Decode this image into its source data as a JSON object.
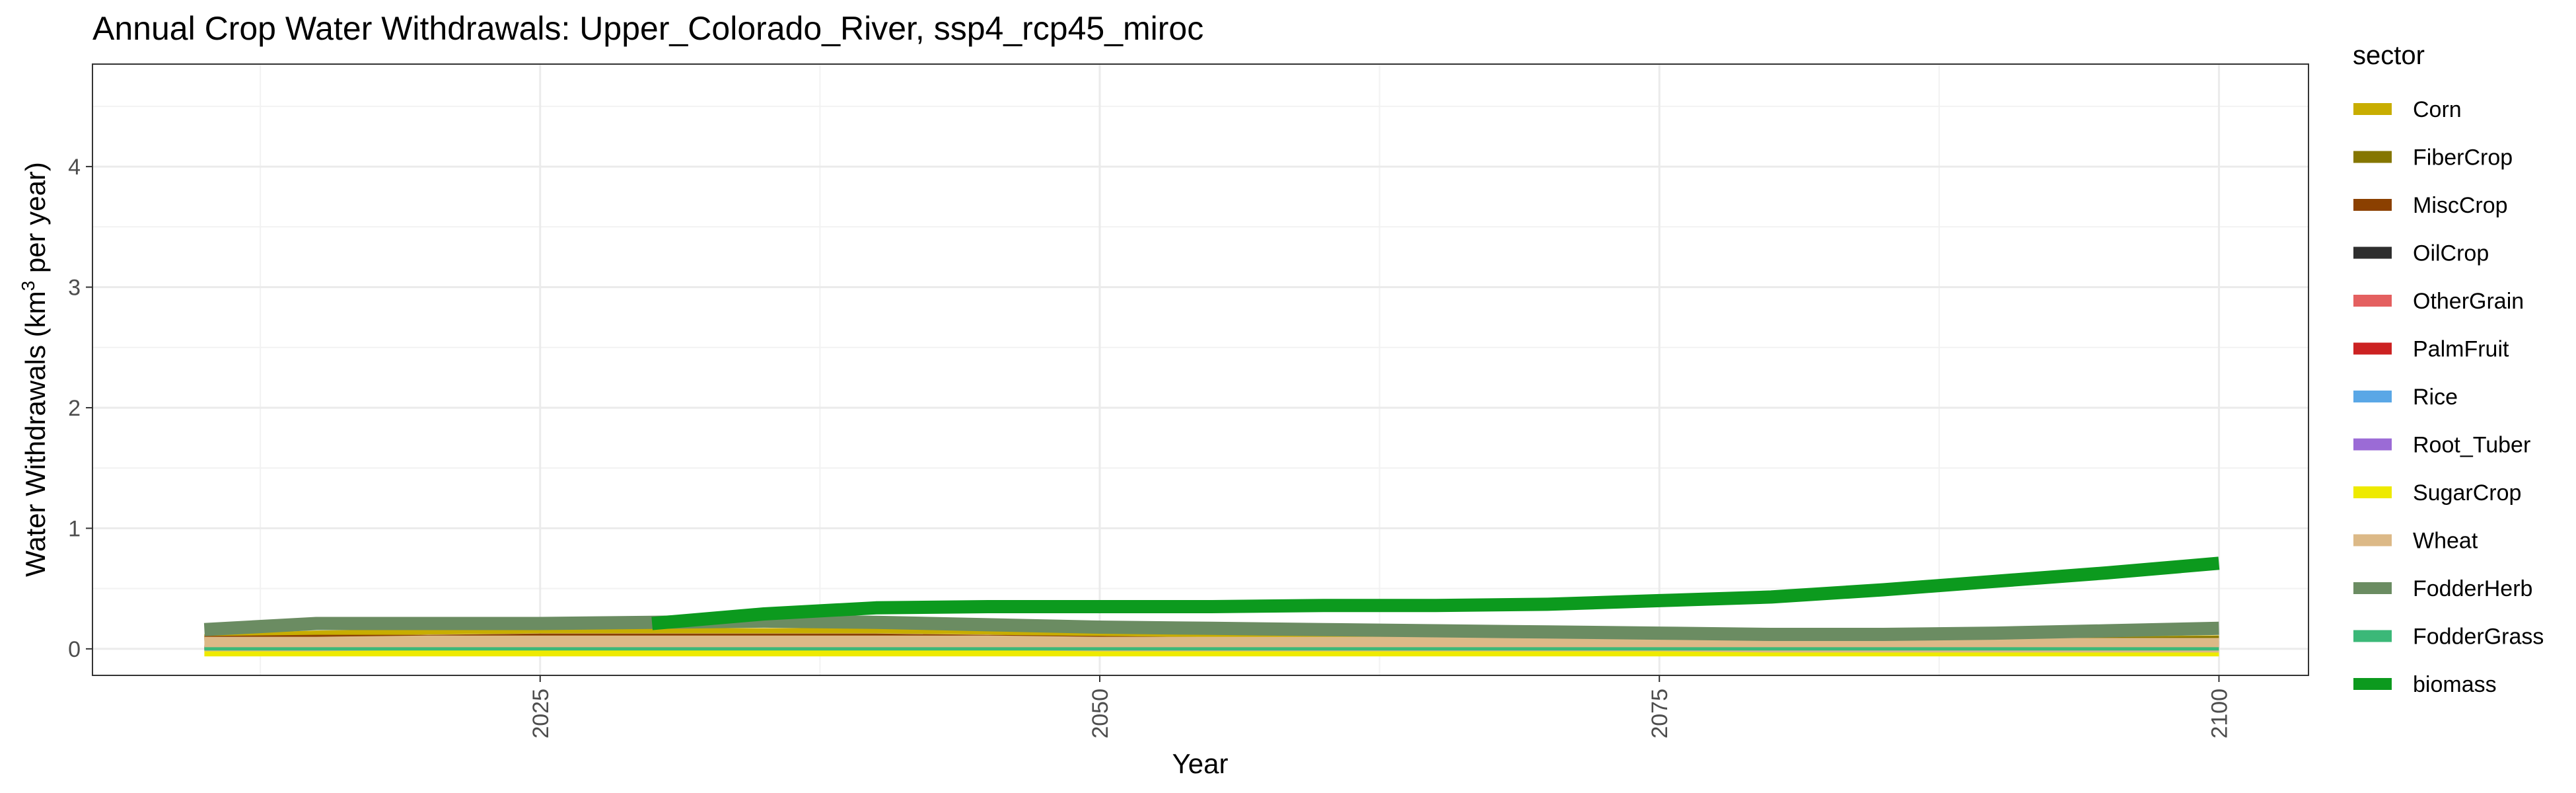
{
  "chart_data": {
    "type": "line",
    "title": "Annual Crop Water Withdrawals: Upper_Colorado_River, ssp4_rcp45_miroc",
    "xlabel": "Year",
    "ylabel_main": "Water Withdrawals (km",
    "ylabel_sup": "3",
    "ylabel_tail": " per year)",
    "xlim": [
      2005,
      2104
    ],
    "ylim": [
      -0.22,
      4.85
    ],
    "x_ticks": [
      2025,
      2050,
      2075,
      2100
    ],
    "y_ticks": [
      0,
      1,
      2,
      3,
      4
    ],
    "grid": true,
    "legend_title": "sector",
    "legend_position": "right",
    "x": [
      2010,
      2015,
      2020,
      2025,
      2030,
      2035,
      2040,
      2045,
      2050,
      2055,
      2060,
      2065,
      2070,
      2075,
      2080,
      2085,
      2090,
      2095,
      2100
    ],
    "series": [
      {
        "name": "Corn",
        "color": "#c8ad00",
        "width": 8,
        "values": [
          0.1,
          0.13,
          0.14,
          0.15,
          0.15,
          0.15,
          0.15,
          0.14,
          0.12,
          0.1,
          0.09,
          0.08,
          0.07,
          0.07,
          0.07,
          0.07,
          0.07,
          0.08,
          0.09
        ]
      },
      {
        "name": "FiberCrop",
        "color": "#857600",
        "width": 6,
        "values": [
          0.08,
          0.09,
          0.09,
          0.1,
          0.1,
          0.1,
          0.1,
          0.09,
          0.09,
          0.08,
          0.08,
          0.08,
          0.08,
          0.08,
          0.08,
          0.08,
          0.08,
          0.08,
          0.09
        ]
      },
      {
        "name": "MiscCrop",
        "color": "#8b4000",
        "width": 6,
        "values": [
          0.09,
          0.1,
          0.1,
          0.11,
          0.11,
          0.11,
          0.11,
          0.1,
          0.09,
          0.08,
          0.07,
          0.06,
          0.05,
          0.05,
          0.05,
          0.05,
          0.05,
          0.05,
          0.05
        ]
      },
      {
        "name": "OilCrop",
        "color": "#2e2e2e",
        "width": 5,
        "values": [
          0.01,
          0.01,
          0.01,
          0.01,
          0.01,
          0.01,
          0.01,
          0.01,
          0.01,
          0.01,
          0.01,
          0.01,
          0.01,
          0.01,
          0.01,
          0.01,
          0.01,
          0.01,
          0.01
        ]
      },
      {
        "name": "OtherGrain",
        "color": "#e46060",
        "width": 5,
        "values": [
          0.02,
          0.02,
          0.02,
          0.02,
          0.02,
          0.02,
          0.02,
          0.02,
          0.02,
          0.02,
          0.02,
          0.02,
          0.02,
          0.02,
          0.02,
          0.02,
          0.02,
          0.02,
          0.02
        ]
      },
      {
        "name": "PalmFruit",
        "color": "#cc2222",
        "width": 5,
        "values": [
          0,
          0,
          0,
          0,
          0,
          0,
          0,
          0,
          0,
          0,
          0,
          0,
          0,
          0,
          0,
          0,
          0,
          0,
          0
        ]
      },
      {
        "name": "Rice",
        "color": "#5aa7e6",
        "width": 5,
        "values": [
          0,
          0,
          0,
          0,
          0,
          0,
          0,
          0,
          0,
          0,
          0,
          0,
          0,
          0,
          0,
          0,
          0,
          0,
          0
        ]
      },
      {
        "name": "Root_Tuber",
        "color": "#9b6bd6",
        "width": 5,
        "values": [
          0.01,
          0.01,
          0.01,
          0.01,
          0.01,
          0.01,
          0.01,
          0.01,
          0.01,
          0.01,
          0.01,
          0.01,
          0.01,
          0.01,
          0.01,
          0.01,
          0.01,
          0.01,
          0.01
        ]
      },
      {
        "name": "SugarCrop",
        "color": "#eeea00",
        "width": 12,
        "values": [
          -0.03,
          -0.03,
          -0.03,
          -0.03,
          -0.03,
          -0.03,
          -0.03,
          -0.03,
          -0.03,
          -0.03,
          -0.03,
          -0.03,
          -0.03,
          -0.03,
          -0.03,
          -0.03,
          -0.03,
          -0.03,
          -0.03
        ]
      },
      {
        "name": "Wheat",
        "color": "#dcb987",
        "width": 22,
        "values": [
          0.04,
          0.04,
          0.05,
          0.05,
          0.05,
          0.05,
          0.05,
          0.05,
          0.04,
          0.04,
          0.04,
          0.04,
          0.04,
          0.04,
          0.03,
          0.03,
          0.03,
          0.03,
          0.03
        ]
      },
      {
        "name": "FodderHerb",
        "color": "#6b8c62",
        "width": 20,
        "values": [
          0.16,
          0.21,
          0.21,
          0.21,
          0.22,
          0.23,
          0.22,
          0.2,
          0.18,
          0.17,
          0.16,
          0.15,
          0.14,
          0.13,
          0.12,
          0.12,
          0.13,
          0.15,
          0.17
        ]
      },
      {
        "name": "FodderGrass",
        "color": "#3bb878",
        "width": 5,
        "values": [
          0,
          0,
          0,
          0,
          0,
          0,
          0,
          0,
          0,
          0,
          0,
          0,
          0,
          0,
          0,
          0,
          0,
          0,
          0
        ]
      },
      {
        "name": "biomass",
        "color": "#0c9a1e",
        "width": 20,
        "values": [
          null,
          null,
          null,
          null,
          0.21,
          0.29,
          0.34,
          0.35,
          0.35,
          0.35,
          0.36,
          0.36,
          0.37,
          0.4,
          0.43,
          0.49,
          0.56,
          0.63,
          0.71
        ]
      }
    ]
  }
}
